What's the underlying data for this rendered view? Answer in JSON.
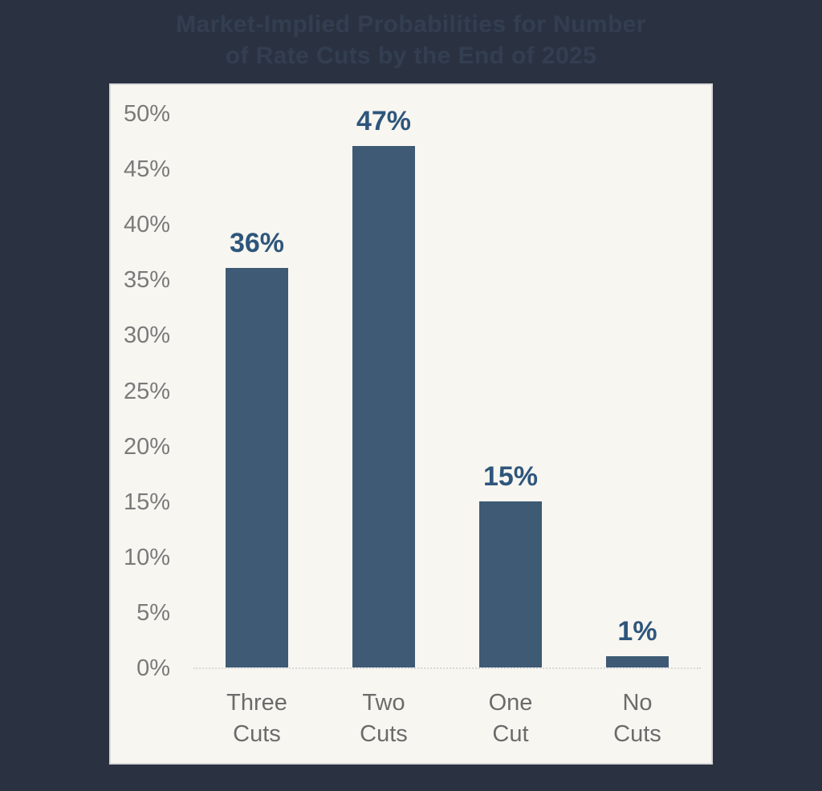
{
  "page": {
    "background_color": "#2a3242"
  },
  "title": {
    "text": "Market-Implied Probabilities for Number\nof Rate Cuts by the End of 2025",
    "color": "#333e51"
  },
  "chart_data": {
    "type": "bar",
    "title": "Market-Implied Probabilities for Number of Rate Cuts by the End of 2025",
    "categories": [
      "Three Cuts",
      "Two Cuts",
      "One Cut",
      "No Cuts"
    ],
    "values": [
      36,
      47,
      15,
      1
    ],
    "data_labels": [
      "36%",
      "47%",
      "15%",
      "1%"
    ],
    "xlabel": "",
    "ylabel": "",
    "ylim": [
      0,
      50
    ],
    "ytick_step": 5,
    "yticks": [
      "50%",
      "45%",
      "40%",
      "35%",
      "30%",
      "25%",
      "20%",
      "15%",
      "10%",
      "5%",
      "0%"
    ],
    "grid": false,
    "legend": false,
    "panel_background": "#f8f6f1",
    "panel_border_color": "#d9d9d9",
    "bar_color": "#3e5a74",
    "value_label_color": "#2e567c",
    "tick_label_color": "#7a7a7a",
    "category_label_color": "#6b6b6b",
    "axis_line_color": "#d9d9d9"
  }
}
